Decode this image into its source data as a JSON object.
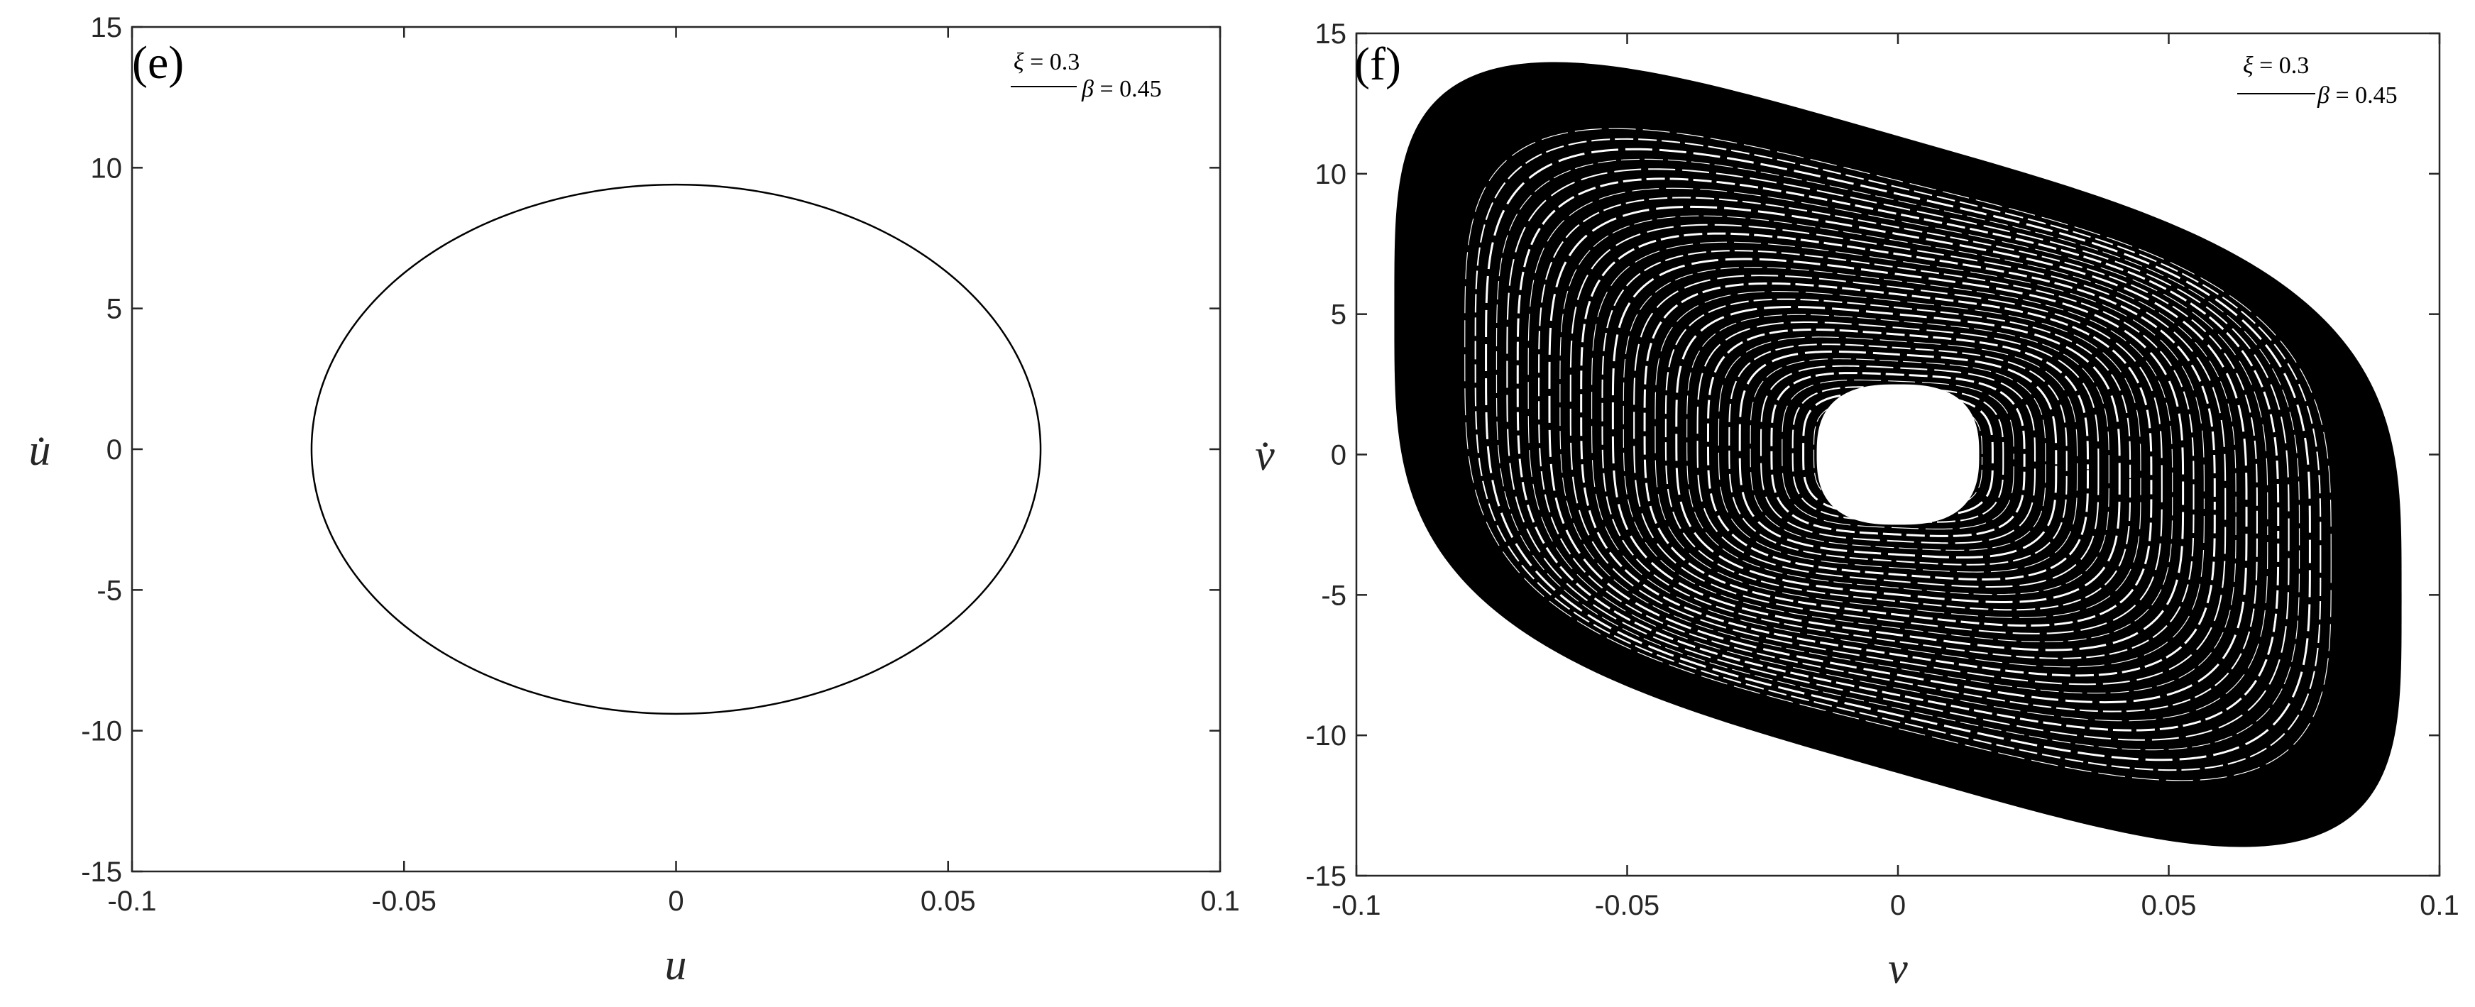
{
  "chart_data": [
    {
      "type": "line",
      "panel_label": "(e)",
      "xlabel": "u",
      "ylabel": "u̇",
      "xlim": [
        -0.1,
        0.1
      ],
      "ylim": [
        -15,
        15
      ],
      "xticks": [
        -0.1,
        -0.05,
        0,
        0.05,
        0.1
      ],
      "xtick_labels": [
        "-0.1",
        "-0.05",
        "0",
        "0.05",
        "0.1"
      ],
      "yticks": [
        -15,
        -10,
        -5,
        0,
        5,
        10,
        15
      ],
      "ytick_labels": [
        "-15",
        "-10",
        "-5",
        "0",
        "5",
        "10",
        "15"
      ],
      "grid": false,
      "legend": {
        "placement": "top-right",
        "entries": [
          {
            "symbol": "ξ",
            "value_text": " = 0.3"
          },
          {
            "symbol": "β",
            "value_text": " = 0.45"
          }
        ]
      },
      "series": [
        {
          "style": "ellipse-orbit",
          "color": "#000000",
          "x": [
            0.067,
            0.058,
            0.0335,
            0,
            -0.0335,
            -0.058,
            -0.067,
            -0.058,
            -0.0335,
            0,
            0.0335,
            0.058,
            0.067
          ],
          "y": [
            0,
            4.7,
            8.15,
            9.4,
            8.15,
            4.7,
            0,
            -4.7,
            -8.15,
            -9.4,
            -8.15,
            -4.7,
            0
          ]
        }
      ]
    },
    {
      "type": "line",
      "panel_label": "(f)",
      "xlabel": "v",
      "ylabel": "v̇",
      "xlim": [
        -0.1,
        0.1
      ],
      "ylim": [
        -15,
        15
      ],
      "xticks": [
        -0.1,
        -0.05,
        0,
        0.05,
        0.1
      ],
      "xtick_labels": [
        "-0.1",
        "-0.05",
        "0",
        "0.05",
        "0.1"
      ],
      "yticks": [
        -15,
        -10,
        -5,
        0,
        5,
        10,
        15
      ],
      "ytick_labels": [
        "-15",
        "-10",
        "-5",
        "0",
        "5",
        "10",
        "15"
      ],
      "grid": false,
      "legend": {
        "placement": "top-right",
        "entries": [
          {
            "symbol": "ξ",
            "value_text": " = 0.3"
          },
          {
            "symbol": "β",
            "value_text": " = 0.45"
          }
        ]
      },
      "series": [
        {
          "style": "dense-quasi-periodic-orbit",
          "color": "#000000",
          "x_extent": [
            -0.093,
            0.093
          ],
          "y_extent": [
            -12.2,
            12.2
          ],
          "inner_hole_x_extent": [
            -0.015,
            0.015
          ],
          "inner_hole_y_extent": [
            -2.5,
            2.5
          ]
        }
      ]
    }
  ]
}
